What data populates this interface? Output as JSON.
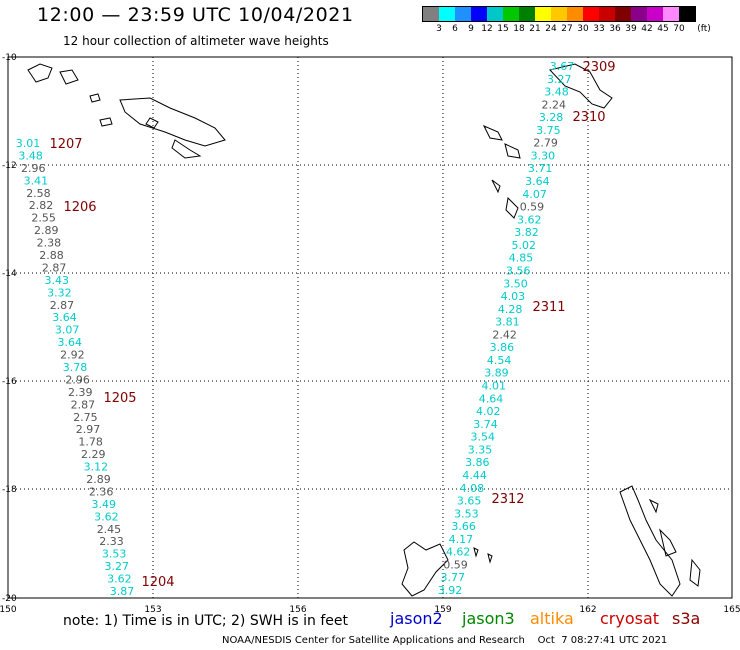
{
  "title": "12:00 — 23:59 UTC 10/04/2021",
  "subtitle": "12 hour collection of altimeter wave heights",
  "legend": {
    "unit": "(ft)",
    "colors": [
      "#808080",
      "#00ffff",
      "#1e90ff",
      "#0000ff",
      "#00c8c8",
      "#00c800",
      "#008000",
      "#ffff00",
      "#ffc800",
      "#ff8c00",
      "#ff0000",
      "#c80000",
      "#800000",
      "#8b008b",
      "#c800c8",
      "#ff88ff",
      "#000000"
    ],
    "labels": [
      "3",
      "6",
      "9",
      "12",
      "15",
      "18",
      "21",
      "24",
      "27",
      "30",
      "33",
      "36",
      "39",
      "42",
      "45",
      "70"
    ]
  },
  "axes": {
    "x_ticks": [
      "150",
      "153",
      "156",
      "159",
      "162",
      "165"
    ],
    "y_ticks": [
      "-10",
      "-12",
      "-14",
      "-16",
      "-18",
      "-20"
    ]
  },
  "tracks": [
    {
      "id": "west",
      "time_labels": [
        {
          "text": "1207"
        },
        {
          "text": "1206"
        },
        {
          "text": "1205"
        },
        {
          "text": "1204"
        }
      ],
      "values": [
        {
          "v": "3.01",
          "c": "cyan"
        },
        {
          "v": "3.48",
          "c": "cyan"
        },
        {
          "v": "2.96",
          "c": "gray"
        },
        {
          "v": "3.41",
          "c": "cyan"
        },
        {
          "v": "2.58",
          "c": "gray"
        },
        {
          "v": "2.82",
          "c": "gray"
        },
        {
          "v": "2.55",
          "c": "gray"
        },
        {
          "v": "2.89",
          "c": "gray"
        },
        {
          "v": "2.38",
          "c": "gray"
        },
        {
          "v": "2.88",
          "c": "gray"
        },
        {
          "v": "2.87",
          "c": "gray"
        },
        {
          "v": "3.43",
          "c": "cyan"
        },
        {
          "v": "3.32",
          "c": "cyan"
        },
        {
          "v": "2.87",
          "c": "gray"
        },
        {
          "v": "3.64",
          "c": "cyan"
        },
        {
          "v": "3.07",
          "c": "cyan"
        },
        {
          "v": "3.64",
          "c": "cyan"
        },
        {
          "v": "2.92",
          "c": "gray"
        },
        {
          "v": "3.78",
          "c": "cyan"
        },
        {
          "v": "2.96",
          "c": "gray"
        },
        {
          "v": "2.39",
          "c": "gray"
        },
        {
          "v": "2.87",
          "c": "gray"
        },
        {
          "v": "2.75",
          "c": "gray"
        },
        {
          "v": "2.97",
          "c": "gray"
        },
        {
          "v": "1.78",
          "c": "gray"
        },
        {
          "v": "2.29",
          "c": "gray"
        },
        {
          "v": "3.12",
          "c": "cyan"
        },
        {
          "v": "2.89",
          "c": "gray"
        },
        {
          "v": "2.36",
          "c": "gray"
        },
        {
          "v": "3.49",
          "c": "cyan"
        },
        {
          "v": "3.62",
          "c": "cyan"
        },
        {
          "v": "2.45",
          "c": "gray"
        },
        {
          "v": "2.33",
          "c": "gray"
        },
        {
          "v": "3.53",
          "c": "cyan"
        },
        {
          "v": "3.27",
          "c": "cyan"
        },
        {
          "v": "3.62",
          "c": "cyan"
        },
        {
          "v": "3.87",
          "c": "cyan"
        }
      ]
    },
    {
      "id": "east",
      "time_labels": [
        {
          "text": "2309"
        },
        {
          "text": "2310"
        },
        {
          "text": "2311"
        },
        {
          "text": "2312"
        }
      ],
      "values": [
        {
          "v": "3.67",
          "c": "cyan"
        },
        {
          "v": "3.27",
          "c": "cyan"
        },
        {
          "v": "3.48",
          "c": "cyan"
        },
        {
          "v": "2.24",
          "c": "gray"
        },
        {
          "v": "3.28",
          "c": "cyan"
        },
        {
          "v": "3.75",
          "c": "cyan"
        },
        {
          "v": "2.79",
          "c": "gray"
        },
        {
          "v": "3.30",
          "c": "cyan"
        },
        {
          "v": "3.71",
          "c": "cyan"
        },
        {
          "v": "3.64",
          "c": "cyan"
        },
        {
          "v": "4.07",
          "c": "cyan"
        },
        {
          "v": "0.59",
          "c": "gray"
        },
        {
          "v": "3.62",
          "c": "cyan"
        },
        {
          "v": "3.82",
          "c": "cyan"
        },
        {
          "v": "5.02",
          "c": "cyan"
        },
        {
          "v": "4.85",
          "c": "cyan"
        },
        {
          "v": "3.56",
          "c": "cyan"
        },
        {
          "v": "3.50",
          "c": "cyan"
        },
        {
          "v": "4.03",
          "c": "cyan"
        },
        {
          "v": "4.28",
          "c": "cyan"
        },
        {
          "v": "3.81",
          "c": "cyan"
        },
        {
          "v": "2.42",
          "c": "gray"
        },
        {
          "v": "3.86",
          "c": "cyan"
        },
        {
          "v": "4.54",
          "c": "cyan"
        },
        {
          "v": "3.89",
          "c": "cyan"
        },
        {
          "v": "4.01",
          "c": "cyan"
        },
        {
          "v": "4.64",
          "c": "cyan"
        },
        {
          "v": "4.02",
          "c": "cyan"
        },
        {
          "v": "3.74",
          "c": "cyan"
        },
        {
          "v": "3.54",
          "c": "cyan"
        },
        {
          "v": "3.35",
          "c": "cyan"
        },
        {
          "v": "3.86",
          "c": "cyan"
        },
        {
          "v": "4.44",
          "c": "cyan"
        },
        {
          "v": "4.08",
          "c": "cyan"
        },
        {
          "v": "3.65",
          "c": "cyan"
        },
        {
          "v": "3.53",
          "c": "cyan"
        },
        {
          "v": "3.66",
          "c": "cyan"
        },
        {
          "v": "4.17",
          "c": "cyan"
        },
        {
          "v": "4.62",
          "c": "cyan"
        },
        {
          "v": "0.59",
          "c": "gray"
        },
        {
          "v": "3.77",
          "c": "cyan"
        },
        {
          "v": "3.92",
          "c": "cyan"
        }
      ]
    }
  ],
  "note": "note:  1) Time is in UTC;  2) SWH is in feet",
  "satellites": [
    {
      "name": "jason2",
      "color": "#0000cc"
    },
    {
      "name": "jason3",
      "color": "#008800"
    },
    {
      "name": "altika",
      "color": "#ff8c00"
    },
    {
      "name": "cryosat",
      "color": "#cc0000"
    },
    {
      "name": "s3a",
      "color": "#8b0000"
    }
  ],
  "footer": "NOAA/NESDIS Center for Satellite Applications and Research    Oct  7 08:27:41 UTC 2021"
}
